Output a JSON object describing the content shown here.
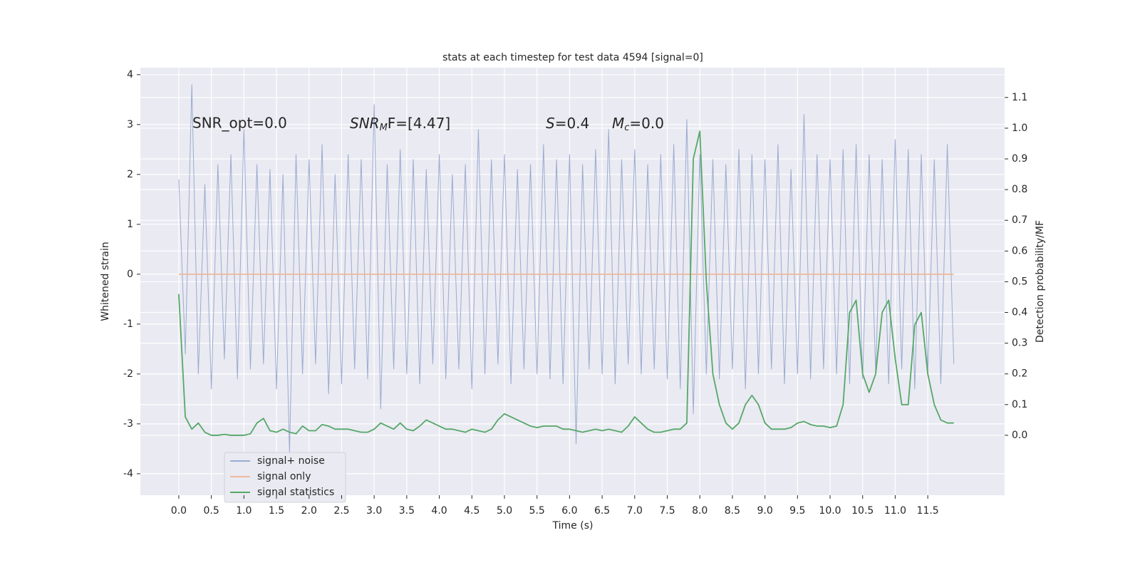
{
  "chart_data": {
    "type": "line",
    "title": "stats at each timestep for test data 4594 [signal=0]",
    "x_label": "Time (s)",
    "y_label": "Whitened strain",
    "y2_label": "Detection probability/MF",
    "annotations": [
      {
        "text": "SNR_opt=0.0"
      },
      {
        "text": "SNR",
        "sub": "M",
        "rest": "F=[4.47]"
      },
      {
        "text": "S",
        "rest": "=0.4"
      },
      {
        "text": "M",
        "sub": "c",
        "rest": "=0.0"
      }
    ],
    "x": [
      0,
      0.1,
      0.2,
      0.3,
      0.4,
      0.5,
      0.6,
      0.7,
      0.8,
      0.9,
      1,
      1.1,
      1.2,
      1.3,
      1.4,
      1.5,
      1.6,
      1.7,
      1.8,
      1.9,
      2,
      2.1,
      2.2,
      2.3,
      2.4,
      2.5,
      2.6,
      2.7,
      2.8,
      2.9,
      3,
      3.1,
      3.2,
      3.3,
      3.4,
      3.5,
      3.6,
      3.7,
      3.8,
      3.9,
      4,
      4.1,
      4.2,
      4.3,
      4.4,
      4.5,
      4.6,
      4.7,
      4.8,
      4.9,
      5,
      5.1,
      5.2,
      5.3,
      5.4,
      5.5,
      5.6,
      5.7,
      5.8,
      5.9,
      6,
      6.1,
      6.2,
      6.3,
      6.4,
      6.5,
      6.6,
      6.7,
      6.8,
      6.9,
      7,
      7.1,
      7.2,
      7.3,
      7.4,
      7.5,
      7.6,
      7.7,
      7.8,
      7.9,
      8,
      8.1,
      8.2,
      8.3,
      8.4,
      8.5,
      8.6,
      8.7,
      8.8,
      8.9,
      9,
      9.1,
      9.2,
      9.3,
      9.4,
      9.5,
      9.6,
      9.7,
      9.8,
      9.9,
      10,
      10.1,
      10.2,
      10.3,
      10.4,
      10.5,
      10.6,
      10.7,
      10.8,
      10.9,
      11,
      11.1,
      11.2,
      11.3,
      11.4,
      11.5,
      11.6,
      11.7,
      11.8,
      11.9
    ],
    "series": [
      {
        "name": "signal+ noise",
        "color": "#9aabd0",
        "axis": "y",
        "values": [
          1.9,
          -1.6,
          3.8,
          -2.0,
          1.8,
          -2.3,
          2.2,
          -1.7,
          2.4,
          -2.1,
          2.9,
          -1.9,
          2.2,
          -1.8,
          2.1,
          -2.3,
          2.0,
          -3.6,
          2.4,
          -2.0,
          2.3,
          -1.8,
          2.6,
          -2.4,
          2.0,
          -2.2,
          2.4,
          -1.9,
          2.3,
          -2.1,
          3.4,
          -2.7,
          2.2,
          -1.9,
          2.5,
          -2.0,
          2.3,
          -2.2,
          2.1,
          -1.8,
          2.4,
          -2.1,
          2.0,
          -1.9,
          2.2,
          -2.3,
          2.9,
          -2.0,
          2.3,
          -1.8,
          2.4,
          -2.2,
          2.1,
          -1.9,
          2.2,
          -2.0,
          2.6,
          -2.1,
          2.3,
          -2.2,
          2.4,
          -3.4,
          2.2,
          -1.9,
          2.5,
          -2.0,
          2.9,
          -2.2,
          2.3,
          -1.8,
          2.5,
          -2.0,
          2.2,
          -1.9,
          2.4,
          -2.1,
          2.6,
          -2.3,
          3.1,
          -2.8,
          2.4,
          -2.0,
          2.3,
          -2.1,
          2.2,
          -1.9,
          2.5,
          -2.3,
          2.4,
          -2.0,
          2.3,
          -1.9,
          2.6,
          -2.2,
          2.1,
          -2.0,
          3.2,
          -2.1,
          2.4,
          -1.9,
          2.3,
          -2.0,
          2.5,
          -2.2,
          2.6,
          -2.1,
          2.4,
          -2.0,
          2.3,
          -2.2,
          2.7,
          -1.9,
          2.5,
          -2.3,
          2.4,
          -2.0,
          2.3,
          -2.2,
          2.6,
          -1.8
        ]
      },
      {
        "name": "signal only",
        "color": "#eeb99a",
        "axis": "y",
        "values": [
          0,
          0,
          0,
          0,
          0,
          0,
          0,
          0,
          0,
          0,
          0,
          0,
          0,
          0,
          0,
          0,
          0,
          0,
          0,
          0,
          0,
          0,
          0,
          0,
          0,
          0,
          0,
          0,
          0,
          0,
          0,
          0,
          0,
          0,
          0,
          0,
          0,
          0,
          0,
          0,
          0,
          0,
          0,
          0,
          0,
          0,
          0,
          0,
          0,
          0,
          0,
          0,
          0,
          0,
          0,
          0,
          0,
          0,
          0,
          0,
          0,
          0,
          0,
          0,
          0,
          0,
          0,
          0,
          0,
          0,
          0,
          0,
          0,
          0,
          0,
          0,
          0,
          0,
          0,
          0,
          0,
          0,
          0,
          0,
          0,
          0,
          0,
          0,
          0,
          0,
          0,
          0,
          0,
          0,
          0,
          0,
          0,
          0,
          0,
          0,
          0,
          0,
          0,
          0,
          0,
          0,
          0,
          0,
          0,
          0,
          0,
          0,
          0,
          0,
          0,
          0,
          0,
          0,
          0,
          0
        ]
      },
      {
        "name": "signal statistics",
        "color": "#55a868",
        "axis": "y2",
        "values": [
          0.46,
          0.06,
          0.02,
          0.04,
          0.01,
          0.0,
          0.0,
          0.003,
          0.0,
          0.0,
          0.0,
          0.005,
          0.04,
          0.055,
          0.015,
          0.01,
          0.02,
          0.01,
          0.005,
          0.03,
          0.015,
          0.015,
          0.035,
          0.03,
          0.02,
          0.02,
          0.02,
          0.015,
          0.01,
          0.01,
          0.02,
          0.04,
          0.03,
          0.02,
          0.04,
          0.02,
          0.015,
          0.03,
          0.05,
          0.04,
          0.03,
          0.02,
          0.02,
          0.015,
          0.01,
          0.02,
          0.015,
          0.01,
          0.02,
          0.05,
          0.07,
          0.06,
          0.05,
          0.04,
          0.03,
          0.025,
          0.03,
          0.03,
          0.03,
          0.02,
          0.02,
          0.015,
          0.01,
          0.015,
          0.02,
          0.015,
          0.02,
          0.015,
          0.01,
          0.03,
          0.06,
          0.04,
          0.02,
          0.01,
          0.01,
          0.015,
          0.02,
          0.02,
          0.04,
          0.9,
          0.99,
          0.5,
          0.2,
          0.1,
          0.04,
          0.02,
          0.04,
          0.1,
          0.13,
          0.1,
          0.04,
          0.02,
          0.02,
          0.02,
          0.025,
          0.04,
          0.045,
          0.035,
          0.03,
          0.03,
          0.025,
          0.03,
          0.1,
          0.4,
          0.44,
          0.2,
          0.14,
          0.2,
          0.4,
          0.44,
          0.25,
          0.1,
          0.1,
          0.36,
          0.4,
          0.2,
          0.1,
          0.05,
          0.04,
          0.04
        ]
      }
    ],
    "xlim": [
      -0.59,
      12.68
    ],
    "xticks": [
      {
        "value": 0,
        "label": "0.0"
      },
      0.5,
      {
        "value": 1,
        "label": "1.0"
      },
      1.5,
      {
        "value": 2,
        "label": "2.0"
      },
      2.5,
      {
        "value": 3,
        "label": "3.0"
      },
      3.5,
      {
        "value": 4,
        "label": "4.0"
      },
      4.5,
      {
        "value": 5,
        "label": "5.0"
      },
      5.5,
      {
        "value": 6,
        "label": "6.0"
      },
      6.5,
      {
        "value": 7,
        "label": "7.0"
      },
      7.5,
      {
        "value": 8,
        "label": "8.0"
      },
      8.5,
      {
        "value": 9,
        "label": "9.0"
      },
      9.5,
      {
        "value": 10,
        "label": "10.0"
      },
      10.5,
      {
        "value": 11,
        "label": "11.0"
      },
      11.5
    ],
    "ylim": [
      -4.43,
      4.14
    ],
    "yticks": [
      -4,
      -3,
      -2,
      -1,
      0,
      1,
      2,
      3,
      4
    ],
    "y2lim": [
      -0.195,
      1.197
    ],
    "y2ticks": [
      {
        "value": 0,
        "label": "0.0"
      },
      0.1,
      0.2,
      0.3,
      0.4,
      0.5,
      0.6,
      0.7,
      0.8,
      0.9,
      {
        "value": 1,
        "label": "1.0"
      },
      1.1
    ],
    "grid": true,
    "legend": "lower left",
    "background": "#eaeaf2"
  }
}
